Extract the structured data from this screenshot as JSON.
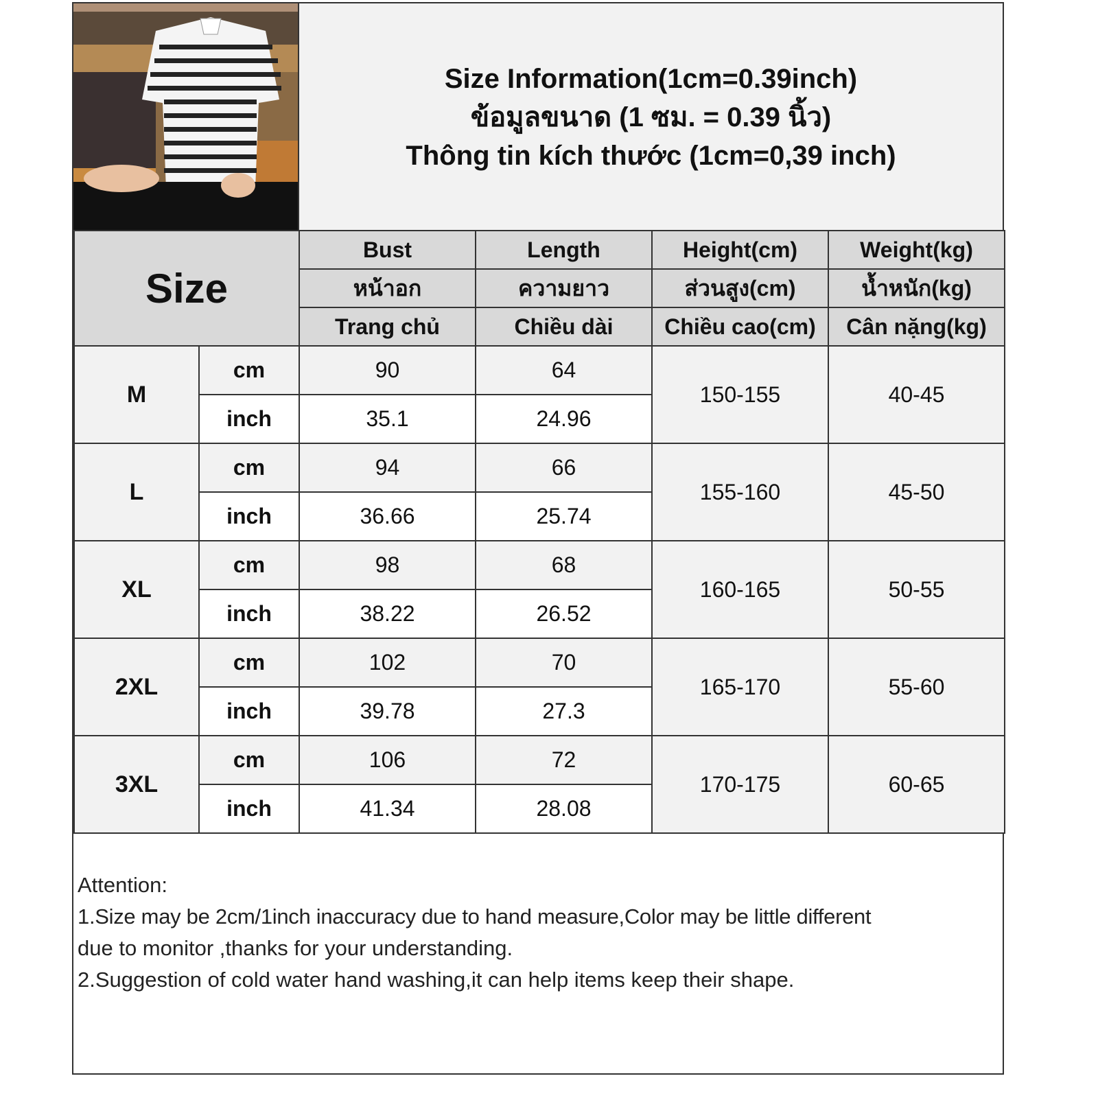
{
  "title_lines": [
    "Size Information(1cm=0.39inch)",
    "ข้อมูลขนาด (1 ซม. = 0.39 นิ้ว)",
    "Thông tin kích thước (1cm=0,39 inch)"
  ],
  "size_header": "Size",
  "columns": [
    {
      "en": "Bust",
      "th": "หน้าอก",
      "vi": "Trang chủ"
    },
    {
      "en": "Length",
      "th": "ความยาว",
      "vi": "Chiều dài"
    },
    {
      "en": "Height(cm)",
      "th": "ส่วนสูง(cm)",
      "vi": "Chiều cao(cm)"
    },
    {
      "en": "Weight(kg)",
      "th": "น้ำหนัก(kg)",
      "vi": "Cân nặng(kg)"
    }
  ],
  "units": {
    "cm": "cm",
    "inch": "inch"
  },
  "rows": [
    {
      "size": "M",
      "bust_cm": "90",
      "length_cm": "64",
      "bust_inch": "35.1",
      "length_inch": "24.96",
      "height": "150-155",
      "weight": "40-45"
    },
    {
      "size": "L",
      "bust_cm": "94",
      "length_cm": "66",
      "bust_inch": "36.66",
      "length_inch": "25.74",
      "height": "155-160",
      "weight": "45-50"
    },
    {
      "size": "XL",
      "bust_cm": "98",
      "length_cm": "68",
      "bust_inch": "38.22",
      "length_inch": "26.52",
      "height": "160-165",
      "weight": "50-55"
    },
    {
      "size": "2XL",
      "bust_cm": "102",
      "length_cm": "70",
      "bust_inch": "39.78",
      "length_inch": "27.3",
      "height": "165-170",
      "weight": "55-60"
    },
    {
      "size": "3XL",
      "bust_cm": "106",
      "length_cm": "72",
      "bust_inch": "41.34",
      "length_inch": "28.08",
      "height": "170-175",
      "weight": "60-65"
    }
  ],
  "notes": [
    "Attention:",
    "1.Size may be 2cm/1inch inaccuracy due to hand measure,Color may be little different",
    "due to monitor ,thanks for your understanding.",
    "2.Suggestion of cold water hand washing,it can help items keep their shape."
  ]
}
